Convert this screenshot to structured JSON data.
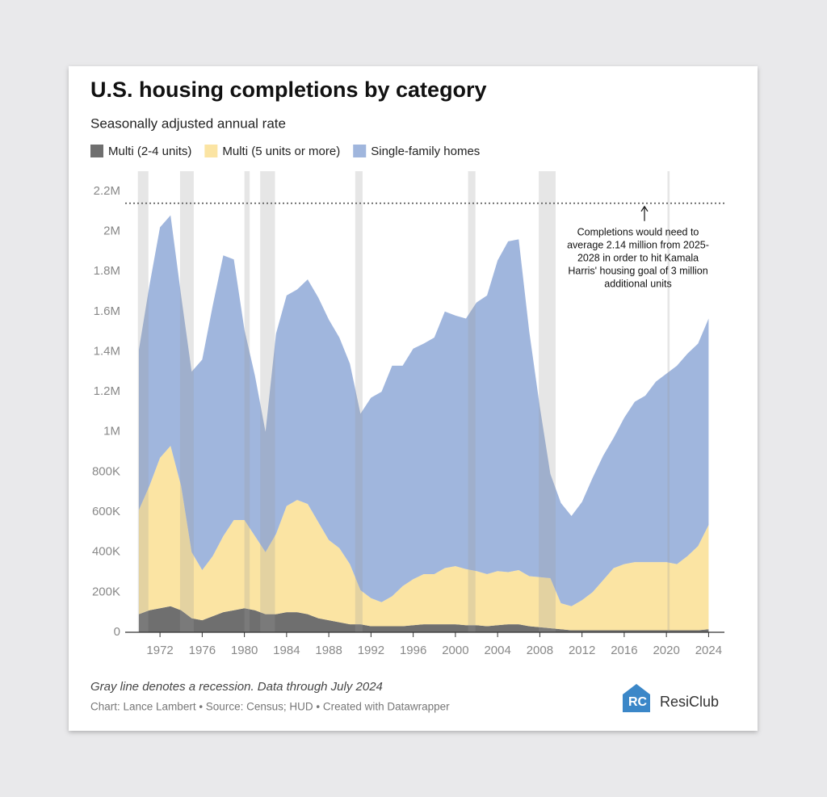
{
  "chart_data": {
    "type": "stacked_area",
    "title": "U.S. housing completions by category",
    "subtitle": "Seasonally adjusted annual rate",
    "x": [
      1970,
      1971,
      1972,
      1973,
      1974,
      1975,
      1976,
      1977,
      1978,
      1979,
      1980,
      1981,
      1982,
      1983,
      1984,
      1985,
      1986,
      1987,
      1988,
      1989,
      1990,
      1991,
      1992,
      1993,
      1994,
      1995,
      1996,
      1997,
      1998,
      1999,
      2000,
      2001,
      2002,
      2003,
      2004,
      2005,
      2006,
      2007,
      2008,
      2009,
      2010,
      2011,
      2012,
      2013,
      2014,
      2015,
      2016,
      2017,
      2018,
      2019,
      2020,
      2021,
      2022,
      2023,
      2024
    ],
    "series": [
      {
        "name": "Multi (2-4 units)",
        "color": "#6f6f6f",
        "values": [
          90000,
          110000,
          120000,
          130000,
          110000,
          70000,
          60000,
          80000,
          100000,
          110000,
          120000,
          110000,
          90000,
          90000,
          100000,
          100000,
          90000,
          70000,
          60000,
          50000,
          40000,
          40000,
          30000,
          30000,
          30000,
          30000,
          35000,
          40000,
          40000,
          40000,
          40000,
          35000,
          35000,
          30000,
          35000,
          40000,
          40000,
          30000,
          25000,
          20000,
          15000,
          10000,
          10000,
          10000,
          10000,
          10000,
          10000,
          10000,
          10000,
          10000,
          10000,
          10000,
          10000,
          10000,
          15000
        ]
      },
      {
        "name": "Multi (5 units or more)",
        "color": "#fbe4a3",
        "values": [
          520000,
          620000,
          750000,
          800000,
          620000,
          330000,
          250000,
          300000,
          380000,
          450000,
          440000,
          370000,
          310000,
          400000,
          530000,
          560000,
          550000,
          480000,
          400000,
          370000,
          300000,
          170000,
          140000,
          120000,
          150000,
          200000,
          230000,
          250000,
          250000,
          280000,
          290000,
          280000,
          270000,
          260000,
          270000,
          260000,
          270000,
          250000,
          250000,
          250000,
          130000,
          120000,
          150000,
          190000,
          250000,
          310000,
          330000,
          340000,
          340000,
          340000,
          340000,
          330000,
          370000,
          420000,
          520000
        ]
      },
      {
        "name": "Single-family homes",
        "color": "#a0b6dd",
        "values": [
          800000,
          1000000,
          1150000,
          1150000,
          950000,
          900000,
          1050000,
          1250000,
          1400000,
          1300000,
          950000,
          800000,
          600000,
          1000000,
          1050000,
          1050000,
          1120000,
          1120000,
          1100000,
          1050000,
          1000000,
          880000,
          1000000,
          1050000,
          1150000,
          1100000,
          1150000,
          1150000,
          1180000,
          1280000,
          1250000,
          1250000,
          1340000,
          1390000,
          1550000,
          1650000,
          1650000,
          1220000,
          850000,
          520000,
          500000,
          450000,
          490000,
          570000,
          620000,
          650000,
          730000,
          800000,
          830000,
          900000,
          940000,
          990000,
          1010000,
          1010000,
          1030000
        ]
      }
    ],
    "recessions": [
      [
        1969.9,
        1970.9
      ],
      [
        1973.9,
        1975.2
      ],
      [
        1980.0,
        1980.5
      ],
      [
        1981.5,
        1982.9
      ],
      [
        1990.5,
        1991.2
      ],
      [
        2001.2,
        2001.9
      ],
      [
        2007.9,
        2009.5
      ],
      [
        2020.1,
        2020.3
      ]
    ],
    "reference_line": 2140000,
    "annotation": [
      "Completions would need to",
      "average 2.14 million from 2025-",
      "2028 in order to hit Kamala",
      "Harris' housing goal of 3 million",
      "additional units"
    ],
    "xlim": [
      1968.7,
      2025.5
    ],
    "xticks": [
      1972,
      1976,
      1980,
      1984,
      1988,
      1992,
      1996,
      2000,
      2004,
      2008,
      2012,
      2016,
      2020,
      2024
    ],
    "ylim": [
      0,
      2300000
    ],
    "yticks": [
      0,
      {
        "value": 200000,
        "label": "200K"
      },
      {
        "value": 400000,
        "label": "400K"
      },
      {
        "value": 600000,
        "label": "600K"
      },
      {
        "value": 800000,
        "label": "800K"
      },
      {
        "value": 1000000,
        "label": "1M"
      },
      {
        "value": 1200000,
        "label": "1.2M"
      },
      {
        "value": 1400000,
        "label": "1.4M"
      },
      {
        "value": 1600000,
        "label": "1.6M"
      },
      {
        "value": 1800000,
        "label": "1.8M"
      },
      {
        "value": 2000000,
        "label": "2M"
      },
      {
        "value": 2200000,
        "label": "2.2M"
      }
    ],
    "note": "Gray line denotes a recession. Data through July 2024",
    "credit": "Chart: Lance Lambert • Source: Census; HUD • Created with Datawrapper",
    "logo": "ResiClub"
  }
}
